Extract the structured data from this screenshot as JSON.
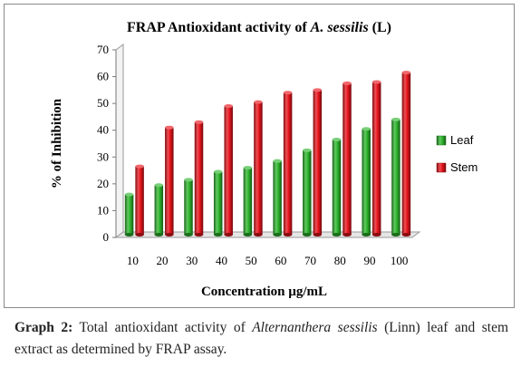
{
  "chart_data": {
    "type": "bar",
    "title": {
      "prefix": "FRAP Antioxidant activity of ",
      "species": "A. sessilis",
      "suffix": " (L)"
    },
    "xlabel": "Concentration µg/mL",
    "ylabel": "% of Inhibition",
    "categories": [
      "10",
      "20",
      "30",
      "40",
      "50",
      "60",
      "70",
      "80",
      "90",
      "100"
    ],
    "series": [
      {
        "name": "Leaf",
        "color": "#2db52d",
        "values": [
          15,
          18.5,
          20.5,
          23.5,
          25,
          27.5,
          31.5,
          35.5,
          39.5,
          43
        ]
      },
      {
        "name": "Stem",
        "color": "#e8141c",
        "values": [
          25.5,
          40,
          42,
          48,
          49.5,
          53,
          54,
          56.5,
          57,
          60.5
        ]
      }
    ],
    "ylim": [
      0,
      70
    ],
    "yticks": [
      "0",
      "10",
      "20",
      "30",
      "40",
      "50",
      "60",
      "70"
    ],
    "grid": false,
    "legend_position": "right",
    "style": "3d-cylinder"
  },
  "caption": {
    "label": "Graph 2:",
    "text_before": " Total antioxidant activity of ",
    "species": "Alternanthera sessilis",
    "text_after": " (Linn) leaf and stem extract as determined by FRAP assay."
  }
}
